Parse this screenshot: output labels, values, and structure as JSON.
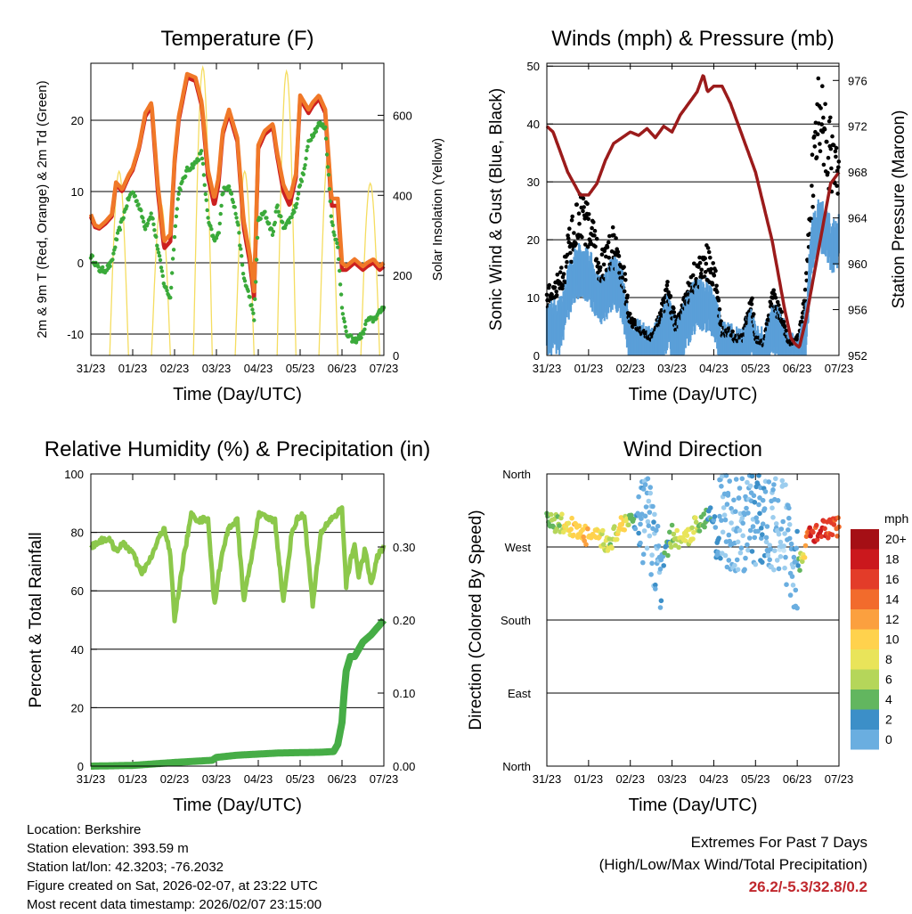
{
  "chart_data": [
    {
      "type": "line",
      "title": "Temperature (F)",
      "xlabel": "Time (Day/UTC)",
      "ylabel": "2m & 9m T (Red, Orange) & 2m Td (Green)",
      "y2label": "Solar Insolation (Yellow)",
      "x_ticks": [
        "31/23",
        "01/23",
        "02/23",
        "03/23",
        "04/23",
        "05/23",
        "06/23",
        "07/23"
      ],
      "ylim": [
        -13,
        28
      ],
      "y_ticks": [
        -10,
        0,
        10,
        20
      ],
      "y2lim": [
        0,
        730
      ],
      "y2_ticks": [
        0,
        200,
        400,
        600
      ],
      "x_day": [
        0,
        0.1,
        0.2,
        0.35,
        0.5,
        0.6,
        0.75,
        0.9,
        1.0,
        1.15,
        1.3,
        1.45,
        1.6,
        1.75,
        1.9,
        2.0,
        2.1,
        2.3,
        2.5,
        2.65,
        2.8,
        2.95,
        3.05,
        3.15,
        3.3,
        3.5,
        3.65,
        3.8,
        3.9,
        4.0,
        4.15,
        4.35,
        4.45,
        4.6,
        4.75,
        4.9,
        5.0,
        5.1,
        5.2,
        5.3,
        5.45,
        5.6,
        5.75,
        5.9,
        6.0,
        6.1,
        6.3,
        6.5,
        6.6,
        6.75,
        6.9,
        7.0
      ],
      "series": [
        {
          "name": "2m T",
          "color": "#cc2020",
          "values": [
            6.5,
            5,
            4.8,
            5.5,
            6.5,
            11,
            10,
            12,
            13,
            16,
            20.5,
            22,
            10,
            2,
            3,
            14,
            20,
            26,
            25.5,
            22,
            12,
            8,
            11,
            18,
            21,
            17,
            5,
            0,
            -5,
            16,
            18,
            19,
            15,
            10,
            8,
            12,
            23,
            22,
            21,
            22,
            23,
            21,
            8,
            8,
            -1,
            -1,
            0,
            -1,
            -0.5,
            0,
            -1,
            -0.5
          ]
        },
        {
          "name": "9m T",
          "color": "#f07828",
          "values": [
            6.8,
            5.3,
            5,
            5.8,
            6.8,
            11.3,
            10.3,
            12.3,
            13.3,
            16.3,
            21,
            22.5,
            11,
            3,
            4,
            14.5,
            20.5,
            26.5,
            26,
            22.5,
            13,
            9,
            12,
            18.5,
            21.5,
            17.5,
            6,
            1,
            -4,
            16.5,
            18.5,
            19.5,
            15.5,
            11,
            9,
            12.5,
            23.5,
            22.5,
            21.5,
            22.5,
            23.5,
            21.5,
            9,
            9,
            0,
            -0.5,
            0.5,
            -0.5,
            0,
            0.5,
            -0.5,
            0
          ]
        },
        {
          "name": "2m Td",
          "color": "#3aaa3a",
          "values": [
            1,
            0,
            -1,
            -1,
            0,
            3,
            6,
            9,
            10,
            8,
            5,
            7,
            2,
            -3,
            -5,
            4,
            10,
            13,
            14,
            15.5,
            6,
            3,
            4,
            10,
            11,
            6,
            -2,
            -5,
            -8,
            6,
            7,
            4,
            8,
            5,
            6,
            8,
            11,
            13,
            17,
            18,
            19.5,
            19,
            6,
            2,
            -6,
            -10,
            -11,
            -10,
            -8,
            -8,
            -7,
            -6
          ]
        }
      ],
      "insolation_peak_w_m2": [
        340,
        460,
        380,
        720,
        460,
        710,
        510,
        430
      ]
    },
    {
      "type": "scatter",
      "title": "Winds (mph) & Pressure (mb)",
      "xlabel": "Time (Day/UTC)",
      "ylabel": "Sonic Wind & Gust (Blue, Black)",
      "y2label": "Station Pressure (Maroon)",
      "x_ticks": [
        "31/23",
        "01/23",
        "02/23",
        "03/23",
        "04/23",
        "05/23",
        "06/23",
        "07/23"
      ],
      "ylim": [
        0,
        50.5
      ],
      "y_ticks": [
        0,
        10,
        20,
        30,
        40,
        50
      ],
      "y2lim": [
        952,
        977.5
      ],
      "y2_ticks": [
        952,
        956,
        960,
        964,
        968,
        972,
        976
      ],
      "wind_day": [
        0,
        0.3,
        0.6,
        0.8,
        1.0,
        1.3,
        1.6,
        1.8,
        2.0,
        2.3,
        2.5,
        2.7,
        2.9,
        3.1,
        3.5,
        3.8,
        4.0,
        4.2,
        4.4,
        4.5,
        4.7,
        4.9,
        5.0,
        5.2,
        5.4,
        5.6,
        5.8,
        6.0,
        6.1,
        6.2,
        6.35,
        6.5,
        6.7,
        6.85,
        7.0
      ],
      "wind_mph": [
        6,
        6,
        14,
        16,
        15,
        10,
        14,
        12,
        3,
        2,
        1,
        3,
        7,
        3,
        9,
        10,
        9,
        2,
        2,
        1,
        1,
        6,
        2,
        1,
        6,
        4,
        0,
        0,
        3,
        5,
        20,
        24,
        22,
        20,
        21
      ],
      "gust_mph": [
        10,
        12,
        20,
        24,
        22,
        15,
        19,
        15,
        6,
        4,
        3,
        6,
        11,
        5,
        13,
        16,
        15,
        4,
        4,
        3,
        3,
        10,
        3,
        2,
        10,
        7,
        2,
        3,
        6,
        10,
        30,
        40,
        38,
        32,
        30
      ],
      "pressure_day": [
        0,
        0.15,
        0.3,
        0.5,
        0.65,
        0.8,
        1.0,
        1.2,
        1.4,
        1.6,
        1.8,
        2.0,
        2.2,
        2.4,
        2.6,
        2.8,
        3.0,
        3.2,
        3.4,
        3.6,
        3.75,
        3.85,
        4.0,
        4.2,
        4.4,
        4.6,
        4.8,
        5.0,
        5.2,
        5.4,
        5.55,
        5.7,
        5.85,
        5.95,
        6.05,
        6.2,
        6.4,
        6.6,
        6.8,
        7.0
      ],
      "pressure_mb": [
        972,
        971.5,
        970,
        968,
        967,
        966,
        966,
        967,
        969,
        970.5,
        971,
        971.5,
        971.2,
        971.8,
        971,
        972,
        971.5,
        973,
        974,
        975,
        976.5,
        975,
        975.5,
        975.5,
        974,
        972,
        970,
        968,
        965,
        962,
        959,
        956,
        953.5,
        953,
        952.7,
        955,
        959,
        963,
        967,
        968
      ]
    },
    {
      "type": "line",
      "title": "Relative Humidity (%) & Precipitation (in)",
      "xlabel": "Time (Day/UTC)",
      "ylabel": "Percent & Total Rainfall",
      "x_ticks": [
        "31/23",
        "01/23",
        "02/23",
        "03/23",
        "04/23",
        "05/23",
        "06/23",
        "07/23"
      ],
      "ylim": [
        0,
        100
      ],
      "y_ticks": [
        0,
        20,
        40,
        60,
        80,
        100
      ],
      "y2lim": [
        0,
        0.4
      ],
      "y2_ticks": [
        "0.00",
        "0.10",
        "0.20",
        "0.30"
      ],
      "rh_day": [
        0,
        0.2,
        0.4,
        0.6,
        0.8,
        1.0,
        1.2,
        1.4,
        1.6,
        1.75,
        1.9,
        2.0,
        2.2,
        2.4,
        2.6,
        2.8,
        2.95,
        3.1,
        3.3,
        3.5,
        3.65,
        3.85,
        4.0,
        4.2,
        4.4,
        4.6,
        4.8,
        4.95,
        5.1,
        5.3,
        5.5,
        5.7,
        5.85,
        6.0,
        6.1,
        6.2,
        6.3,
        6.4,
        6.55,
        6.7,
        6.85,
        7.0
      ],
      "rh_percent": [
        75,
        77,
        78,
        74,
        76,
        73,
        66,
        70,
        77,
        82,
        72,
        50,
        70,
        86,
        84,
        85,
        55,
        70,
        82,
        84,
        57,
        72,
        86,
        85,
        84,
        56,
        80,
        85,
        86,
        55,
        80,
        84,
        86,
        88,
        62,
        70,
        76,
        65,
        74,
        62,
        72,
        75
      ],
      "precip_day": [
        0,
        1.0,
        2.0,
        2.9,
        3.0,
        3.5,
        4.5,
        5.5,
        5.8,
        5.9,
        6.0,
        6.05,
        6.1,
        6.15,
        6.2,
        6.3,
        6.5,
        6.7,
        6.85,
        7.0
      ],
      "precip_in": [
        0,
        0.001,
        0.005,
        0.008,
        0.012,
        0.015,
        0.018,
        0.019,
        0.02,
        0.03,
        0.06,
        0.1,
        0.13,
        0.14,
        0.15,
        0.15,
        0.17,
        0.18,
        0.19,
        0.2
      ],
      "rh_color": "#8cc84b",
      "precip_color": "#46ad46"
    },
    {
      "type": "scatter",
      "title": "Wind Direction",
      "xlabel": "Time (Day/UTC)",
      "ylabel": "Direction (Colored By Speed)",
      "x_ticks": [
        "31/23",
        "01/23",
        "02/23",
        "03/23",
        "04/23",
        "05/23",
        "06/23",
        "07/23"
      ],
      "y_ticks": [
        "North",
        "West",
        "South",
        "East",
        "North"
      ],
      "ylim_deg": [
        0,
        360
      ],
      "colorbar_title": "mph",
      "colorbar_labels": [
        "20+",
        "18",
        "16",
        "14",
        "12",
        "10",
        "8",
        "6",
        "4",
        "2",
        "0"
      ],
      "colorbar_colors": [
        "#a50f15",
        "#cb181d",
        "#e33c29",
        "#f26b2c",
        "#fba03f",
        "#ffd24d",
        "#e9e45a",
        "#b5d65a",
        "#62b65f",
        "#3c8fc8",
        "#6aaee0",
        "#9ccdee",
        "#c8e6f7"
      ],
      "trend_day": [
        0,
        0.3,
        0.6,
        0.9,
        1.2,
        1.5,
        1.8,
        2.1,
        2.4,
        2.7,
        3.0,
        3.3,
        3.6,
        3.9,
        4.2,
        4.5,
        4.8,
        5.1,
        5.4,
        5.7,
        6.0,
        6.3,
        6.6,
        6.9,
        7.0
      ],
      "trend_deg": [
        300,
        300,
        295,
        285,
        280,
        275,
        300,
        305,
        300,
        240,
        285,
        275,
        300,
        310,
        300,
        295,
        300,
        305,
        300,
        290,
        240,
        285,
        290,
        295,
        295
      ],
      "trend_mph": [
        8,
        10,
        14,
        15,
        13,
        10,
        14,
        6,
        3,
        4,
        9,
        12,
        10,
        6,
        4,
        3,
        3,
        5,
        3,
        2,
        5,
        20,
        21,
        19,
        20
      ]
    }
  ],
  "info": {
    "location": "Location: Berkshire",
    "elevation": "Station elevation: 393.59 m",
    "latlon": "Station lat/lon: 42.3203; -76.2032",
    "created": "Figure created on Sat, 2026-02-07, at 23:22 UTC",
    "recent": "Most recent data timestamp: 2026/02/07 23:15:00"
  },
  "extremes": {
    "line1": "Extremes For Past 7 Days",
    "line2": "(High/Low/Max Wind/Total Precipitation)",
    "values": "26.2/-5.3/32.8/0.2"
  },
  "colors": {
    "insolation": "#f5dd60",
    "pressure": "#9b1b1b",
    "gust": "#000000",
    "wind": "#5a9fd8",
    "temp_2m": "#cc2020",
    "temp_9m": "#f07828",
    "dewpoint": "#3aaa3a"
  }
}
